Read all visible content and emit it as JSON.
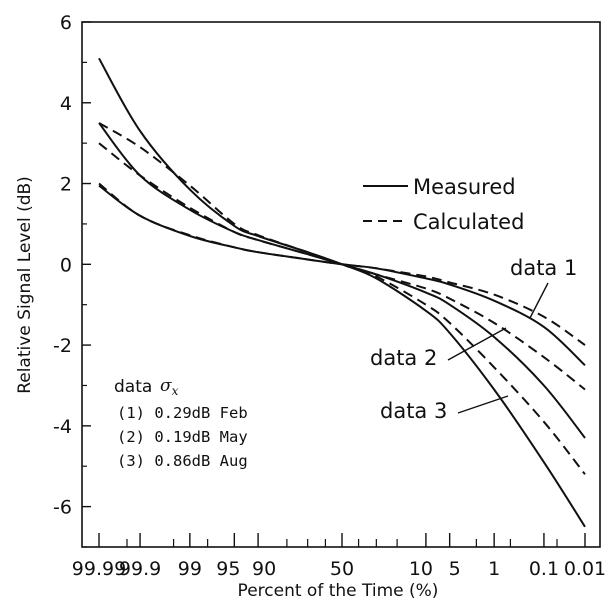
{
  "chart_data": {
    "type": "line",
    "xlabel": "Percent of the Time (%)",
    "ylabel": "Relative Signal Level (dB)",
    "ylim": [
      -7,
      6
    ],
    "y_ticks": [
      "6",
      "4",
      "2",
      "0",
      "-2",
      "-4",
      "-6"
    ],
    "y_tick_values": [
      6,
      4,
      2,
      0,
      -2,
      -4,
      -6
    ],
    "x_scale": "normal-probability",
    "x_ticks": [
      {
        "label": "99.99",
        "value": 99.99
      },
      {
        "label": "99.9",
        "value": 99.9
      },
      {
        "label": "99",
        "value": 99
      },
      {
        "label": "95",
        "value": 95
      },
      {
        "label": "90",
        "value": 90
      },
      {
        "label": "50",
        "value": 50
      },
      {
        "label": "10",
        "value": 10
      },
      {
        "label": "5",
        "value": 5
      },
      {
        "label": "1",
        "value": 1
      },
      {
        "label": "0.1",
        "value": 0.1
      },
      {
        "label": "0.01",
        "value": 0.01
      }
    ],
    "legend": {
      "position": "upper-right",
      "entries": [
        {
          "label": "Measured",
          "style": "solid"
        },
        {
          "label": "Calculated",
          "style": "dashed"
        }
      ]
    },
    "annotations": [
      "data 1",
      "data 2",
      "data 3"
    ],
    "series": [
      {
        "name": "data 1",
        "kind": "measured",
        "style": "solid",
        "x": [
          99.99,
          99.9,
          99,
          95,
          90,
          70,
          50,
          30,
          10,
          5,
          1,
          0.1,
          0.01
        ],
        "y": [
          1.95,
          1.2,
          0.7,
          0.42,
          0.3,
          0.12,
          0.0,
          -0.1,
          -0.35,
          -0.5,
          -0.9,
          -1.55,
          -2.5
        ]
      },
      {
        "name": "data 1",
        "kind": "calculated",
        "style": "dashed",
        "x": [
          99.99,
          99.9,
          99,
          95,
          90,
          70,
          50,
          30,
          10,
          5,
          1,
          0.1,
          0.01
        ],
        "y": [
          2.0,
          1.2,
          0.72,
          0.42,
          0.3,
          0.12,
          0.0,
          -0.1,
          -0.3,
          -0.45,
          -0.75,
          -1.3,
          -2.0
        ]
      },
      {
        "name": "data 2",
        "kind": "measured",
        "style": "solid",
        "x": [
          99.99,
          99.9,
          99,
          95,
          90,
          70,
          50,
          30,
          10,
          5,
          1,
          0.1,
          0.01
        ],
        "y": [
          3.5,
          2.2,
          1.35,
          0.8,
          0.6,
          0.25,
          0.0,
          -0.25,
          -0.7,
          -1.0,
          -1.8,
          -3.0,
          -4.3
        ]
      },
      {
        "name": "data 2",
        "kind": "calculated",
        "style": "dashed",
        "x": [
          99.99,
          99.9,
          99,
          95,
          90,
          70,
          50,
          30,
          10,
          5,
          1,
          0.1,
          0.01
        ],
        "y": [
          3.0,
          2.2,
          1.4,
          0.8,
          0.6,
          0.25,
          0.0,
          -0.25,
          -0.6,
          -0.85,
          -1.45,
          -2.3,
          -3.1
        ]
      },
      {
        "name": "data 3",
        "kind": "measured",
        "style": "solid",
        "x": [
          99.99,
          99.9,
          99,
          95,
          90,
          70,
          50,
          30,
          10,
          5,
          1,
          0.1,
          0.01
        ],
        "y": [
          5.1,
          3.3,
          1.85,
          0.95,
          0.7,
          0.3,
          0.0,
          -0.35,
          -1.15,
          -1.7,
          -3.1,
          -4.9,
          -6.5
        ]
      },
      {
        "name": "data 3",
        "kind": "calculated",
        "style": "dashed",
        "x": [
          99.99,
          99.9,
          99,
          95,
          90,
          70,
          50,
          30,
          10,
          5,
          1,
          0.1,
          0.01
        ],
        "y": [
          3.5,
          2.9,
          1.95,
          1.0,
          0.72,
          0.3,
          0.0,
          -0.3,
          -1.0,
          -1.45,
          -2.55,
          -3.9,
          -5.2
        ]
      }
    ],
    "sigma_box": {
      "header": "data",
      "symbol": "σ",
      "symbol_sub": "x",
      "rows": [
        "(1) 0.29dB Feb",
        "(2) 0.19dB May",
        "(3) 0.86dB Aug"
      ]
    }
  }
}
